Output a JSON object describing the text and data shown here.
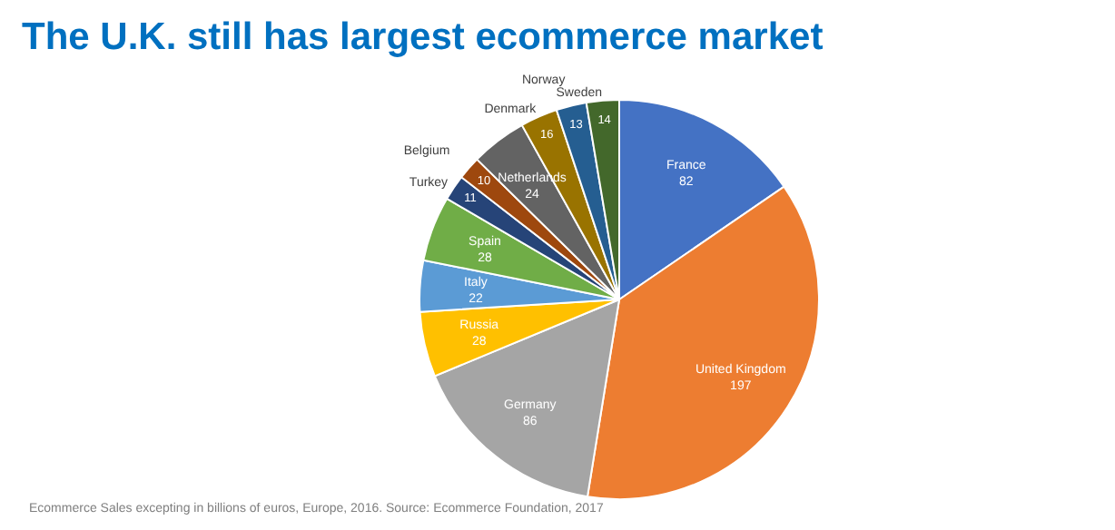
{
  "chart_data": {
    "type": "pie",
    "title": "The U.K. still has largest ecommerce market",
    "categories": [
      "France",
      "United Kingdom",
      "Germany",
      "Russia",
      "Italy",
      "Spain",
      "Turkey",
      "Belgium",
      "Netherlands",
      "Denmark",
      "Norway",
      "Sweden"
    ],
    "values": [
      82,
      197,
      86,
      28,
      22,
      28,
      11,
      10,
      24,
      16,
      13,
      14
    ],
    "colors": [
      "#4472c4",
      "#ed7d31",
      "#a5a5a5",
      "#ffc000",
      "#5b9bd5",
      "#70ad47",
      "#264478",
      "#9e480e",
      "#636363",
      "#997300",
      "#255e91",
      "#43682b"
    ],
    "data_labels": true,
    "annotations": [
      "Ecommerce Sales excepting in billions of euros, Europe, 2016. Source: Ecommerce Foundation, 2017"
    ]
  }
}
